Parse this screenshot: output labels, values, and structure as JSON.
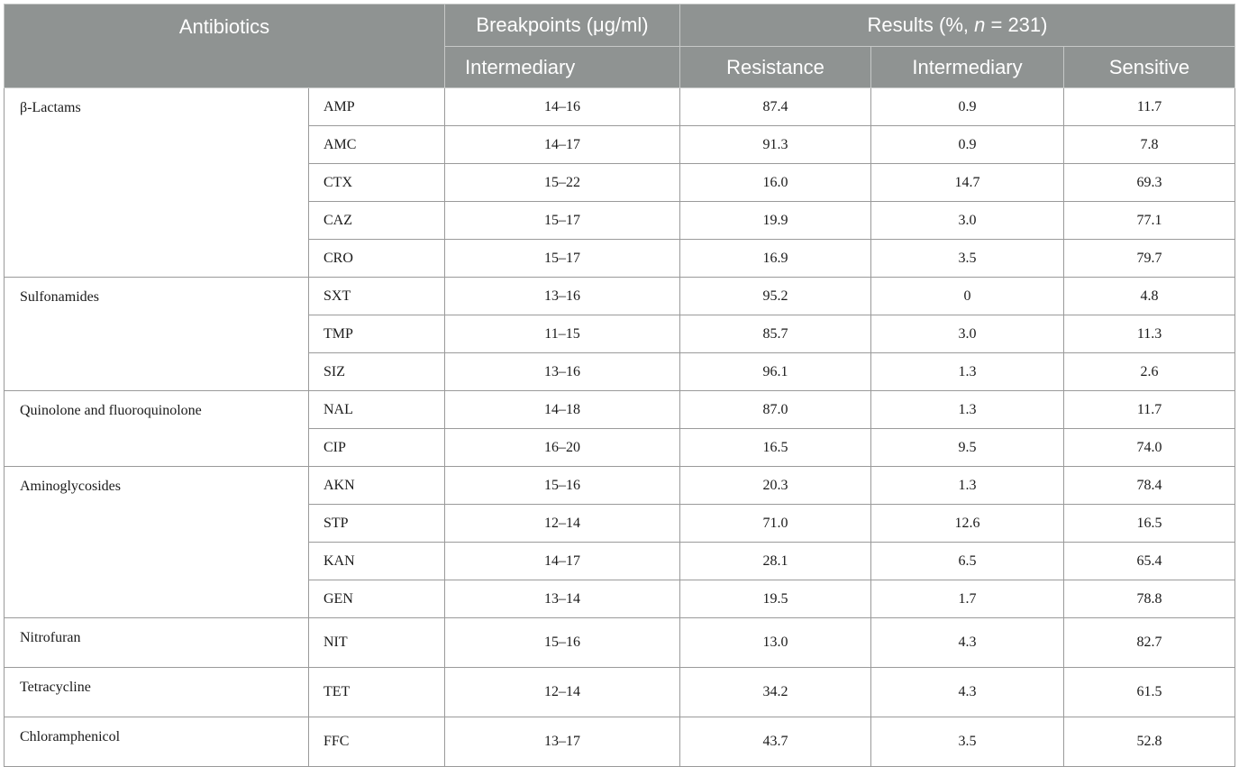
{
  "header": {
    "antibiotics": "Antibiotics",
    "breakpoints": "Breakpoints (μg/ml)",
    "results": "Results (%, n = 231)",
    "results_prefix": "Results (%, ",
    "results_n": "n",
    "results_suffix": " = 231)",
    "intermediary_bp": "Intermediary",
    "resistance": "Resistance",
    "intermediary": "Intermediary",
    "sensitive": "Sensitive"
  },
  "groups": [
    {
      "name": "β-Lactams",
      "rows": [
        {
          "ab": "AMP",
          "bp": "14–16",
          "r": "87.4",
          "i": "0.9",
          "s": "11.7"
        },
        {
          "ab": "AMC",
          "bp": "14–17",
          "r": "91.3",
          "i": "0.9",
          "s": "7.8"
        },
        {
          "ab": "CTX",
          "bp": "15–22",
          "r": "16.0",
          "i": "14.7",
          "s": "69.3"
        },
        {
          "ab": "CAZ",
          "bp": "15–17",
          "r": "19.9",
          "i": "3.0",
          "s": "77.1"
        },
        {
          "ab": "CRO",
          "bp": "15–17",
          "r": "16.9",
          "i": "3.5",
          "s": "79.7"
        }
      ]
    },
    {
      "name": "Sulfonamides",
      "rows": [
        {
          "ab": "SXT",
          "bp": "13–16",
          "r": "95.2",
          "i": "0",
          "s": "4.8"
        },
        {
          "ab": "TMP",
          "bp": "11–15",
          "r": "85.7",
          "i": "3.0",
          "s": "11.3"
        },
        {
          "ab": "SIZ",
          "bp": "13–16",
          "r": "96.1",
          "i": "1.3",
          "s": "2.6"
        }
      ]
    },
    {
      "name": "Quinolone and fluoroquinolone",
      "rows": [
        {
          "ab": "NAL",
          "bp": "14–18",
          "r": "87.0",
          "i": "1.3",
          "s": "11.7"
        },
        {
          "ab": "CIP",
          "bp": "16–20",
          "r": "16.5",
          "i": "9.5",
          "s": "74.0"
        }
      ]
    },
    {
      "name": "Aminoglycosides",
      "rows": [
        {
          "ab": "AKN",
          "bp": "15–16",
          "r": "20.3",
          "i": "1.3",
          "s": "78.4"
        },
        {
          "ab": "STP",
          "bp": "12–14",
          "r": "71.0",
          "i": "12.6",
          "s": "16.5"
        },
        {
          "ab": "KAN",
          "bp": "14–17",
          "r": "28.1",
          "i": "6.5",
          "s": "65.4"
        },
        {
          "ab": "GEN",
          "bp": "13–14",
          "r": "19.5",
          "i": "1.7",
          "s": "78.8"
        }
      ]
    },
    {
      "name": "Nitrofuran",
      "rows": [
        {
          "ab": "NIT",
          "bp": "15–16",
          "r": "13.0",
          "i": "4.3",
          "s": "82.7"
        }
      ]
    },
    {
      "name": "Tetracycline",
      "rows": [
        {
          "ab": "TET",
          "bp": "12–14",
          "r": "34.2",
          "i": "4.3",
          "s": "61.5"
        }
      ]
    },
    {
      "name": "Chloramphenicol",
      "rows": [
        {
          "ab": "FFC",
          "bp": "13–17",
          "r": "43.7",
          "i": "3.5",
          "s": "52.8"
        }
      ]
    }
  ]
}
